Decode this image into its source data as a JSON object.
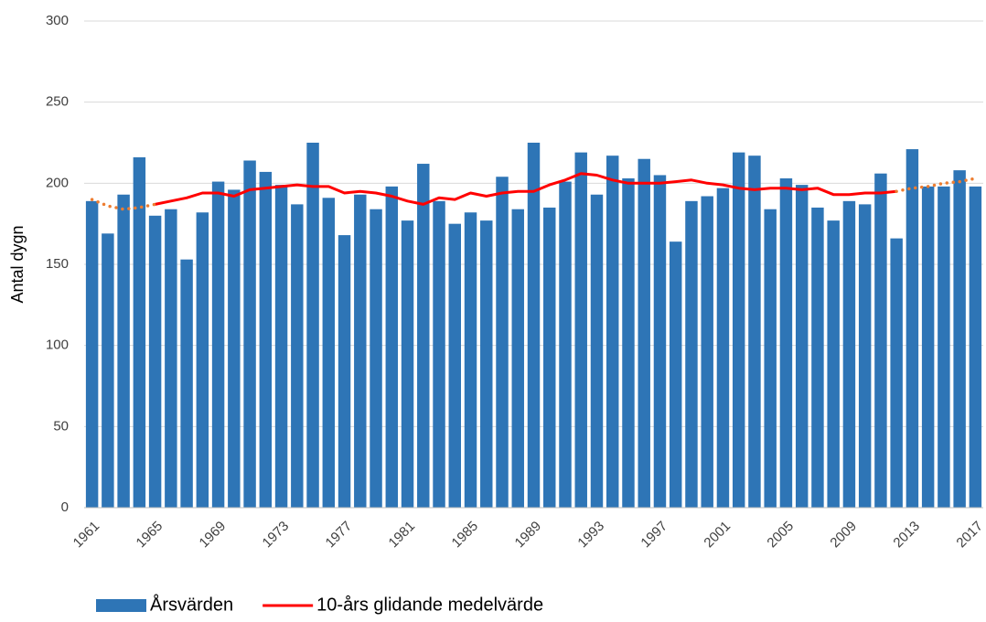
{
  "chart_data": {
    "type": "bar",
    "y_label": "Antal dygn",
    "categories": [
      "1961",
      null,
      null,
      null,
      "1965",
      null,
      null,
      null,
      "1969",
      null,
      null,
      null,
      "1973",
      null,
      null,
      null,
      "1977",
      null,
      null,
      null,
      "1981",
      null,
      null,
      null,
      "1985",
      null,
      null,
      null,
      "1989",
      null,
      null,
      null,
      "1993",
      null,
      null,
      null,
      "1997",
      null,
      null,
      null,
      "2001",
      null,
      null,
      null,
      "2005",
      null,
      null,
      null,
      "2009",
      null,
      null,
      null,
      "2013",
      null,
      null,
      null,
      "2017"
    ],
    "series": [
      {
        "name": "Årsvärden",
        "type": "bar",
        "color": "#2e75b6",
        "values": [
          189,
          169,
          193,
          216,
          180,
          184,
          153,
          182,
          201,
          196,
          214,
          207,
          199,
          187,
          225,
          191,
          168,
          193,
          184,
          198,
          177,
          212,
          189,
          175,
          182,
          177,
          204,
          184,
          225,
          185,
          201,
          219,
          193,
          217,
          203,
          215,
          205,
          164,
          189,
          192,
          197,
          219,
          217,
          184,
          203,
          199,
          185,
          177,
          189,
          187,
          206,
          166,
          221,
          198,
          198,
          208,
          198
        ]
      },
      {
        "name": "10-års glidande medelvärde",
        "type": "line",
        "color": "#ff0000",
        "values": [
          null,
          null,
          null,
          null,
          187,
          189,
          191,
          194,
          194,
          192,
          196,
          197,
          198,
          199,
          198,
          198,
          194,
          195,
          194,
          192,
          189,
          187,
          191,
          190,
          194,
          192,
          194,
          195,
          195,
          199,
          202,
          206,
          205,
          202,
          200,
          200,
          200,
          201,
          202,
          200,
          199,
          197,
          196,
          197,
          197,
          196,
          197,
          193,
          193,
          194,
          194,
          195,
          null,
          null,
          null,
          null,
          null
        ]
      },
      {
        "type": "line",
        "style": "dotted",
        "color": "#ed7d31",
        "values": [
          190,
          186,
          184,
          185,
          187,
          null,
          null,
          null,
          null,
          null,
          null,
          null,
          null,
          null,
          null,
          null,
          null,
          null,
          null,
          null,
          null,
          null,
          null,
          null,
          null,
          null,
          null,
          null,
          null,
          null,
          null,
          null,
          null,
          null,
          null,
          null,
          null,
          null,
          null,
          null,
          null,
          null,
          null,
          null,
          null,
          null,
          null,
          null,
          null,
          null,
          null,
          195,
          197,
          198,
          200,
          201,
          203
        ]
      }
    ],
    "ylim": [
      0,
      300
    ],
    "yticks": [
      0,
      50,
      100,
      150,
      200,
      250,
      300
    ],
    "grid": true,
    "legend": "bottom-left"
  }
}
